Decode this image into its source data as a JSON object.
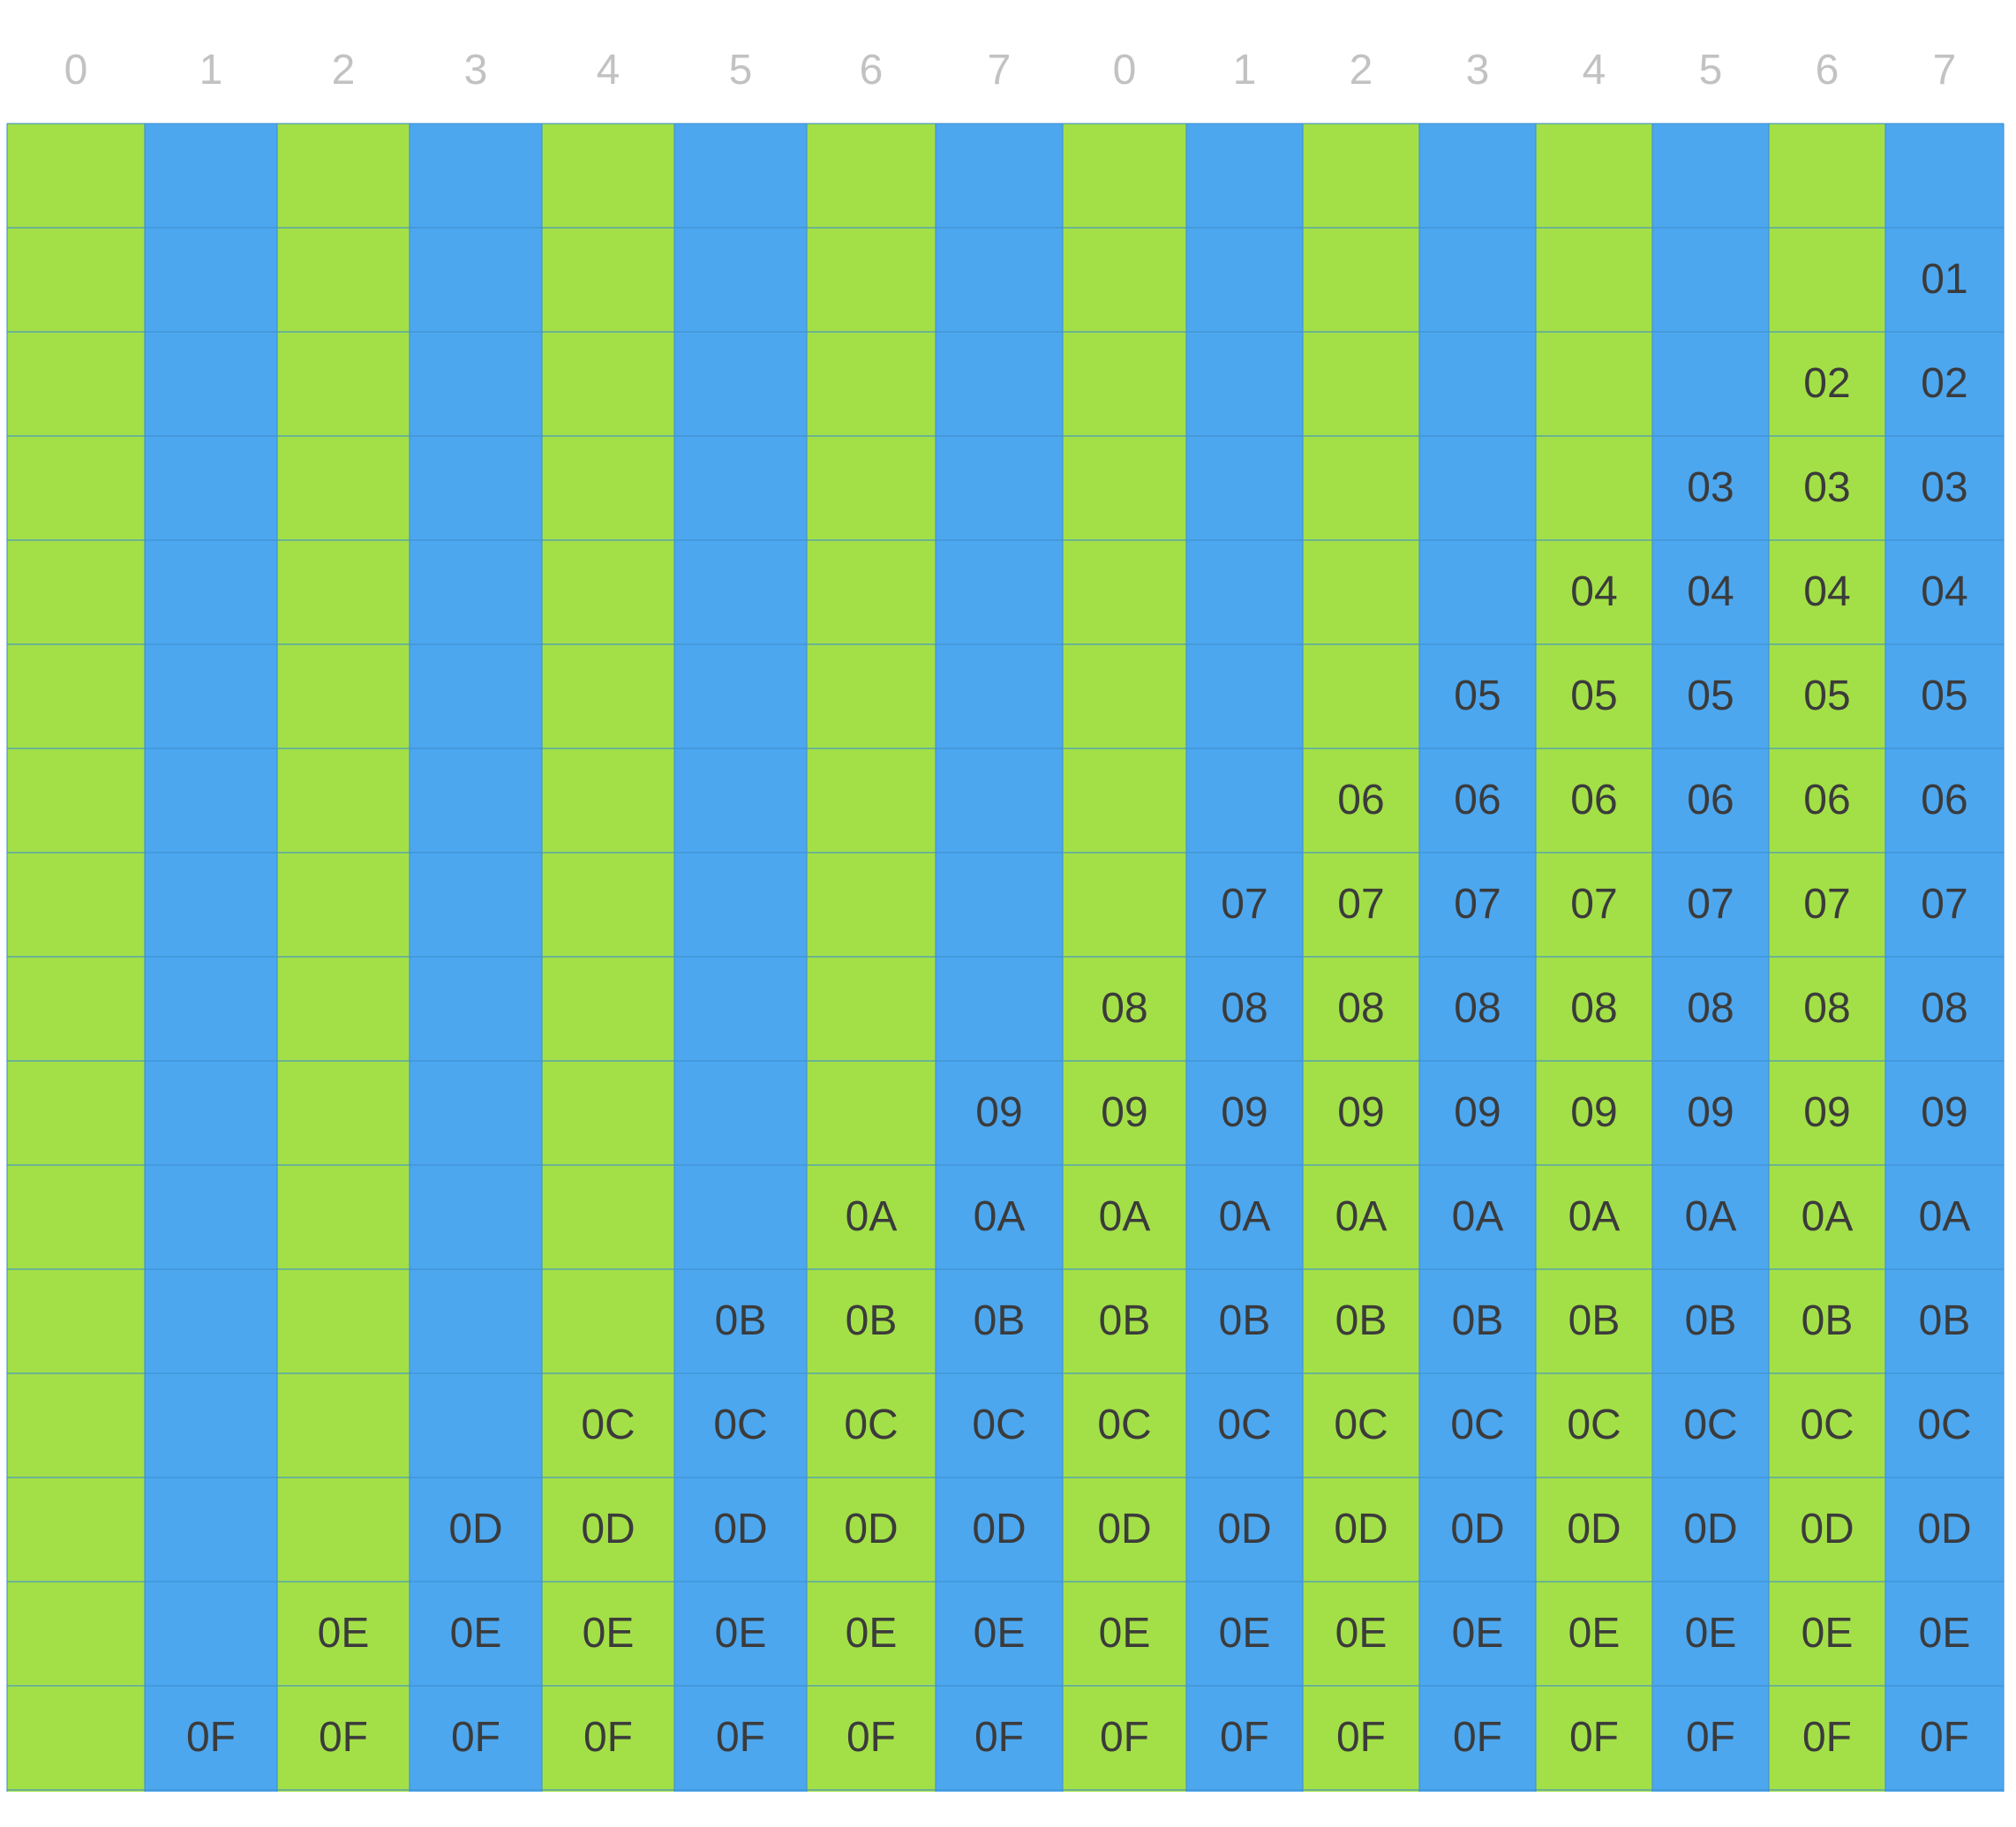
{
  "header": {
    "labels": [
      "0",
      "1",
      "2",
      "3",
      "4",
      "5",
      "6",
      "7",
      "0",
      "1",
      "2",
      "3",
      "4",
      "5",
      "6",
      "7"
    ]
  },
  "grid": {
    "columns": 16,
    "rows": 16,
    "column_colors": [
      "green",
      "blue",
      "green",
      "blue",
      "green",
      "blue",
      "green",
      "blue",
      "green",
      "blue",
      "green",
      "blue",
      "green",
      "blue",
      "green",
      "blue"
    ],
    "colors": {
      "green": "#a3e047",
      "blue": "#4ca7ef",
      "text": "#3b3b3b",
      "header_text": "#c2c2c2"
    },
    "cells": [
      [
        "",
        "",
        "",
        "",
        "",
        "",
        "",
        "",
        "",
        "",
        "",
        "",
        "",
        "",
        "",
        ""
      ],
      [
        "",
        "",
        "",
        "",
        "",
        "",
        "",
        "",
        "",
        "",
        "",
        "",
        "",
        "",
        "",
        "01"
      ],
      [
        "",
        "",
        "",
        "",
        "",
        "",
        "",
        "",
        "",
        "",
        "",
        "",
        "",
        "",
        "02",
        "02"
      ],
      [
        "",
        "",
        "",
        "",
        "",
        "",
        "",
        "",
        "",
        "",
        "",
        "",
        "",
        "03",
        "03",
        "03"
      ],
      [
        "",
        "",
        "",
        "",
        "",
        "",
        "",
        "",
        "",
        "",
        "",
        "",
        "04",
        "04",
        "04",
        "04"
      ],
      [
        "",
        "",
        "",
        "",
        "",
        "",
        "",
        "",
        "",
        "",
        "",
        "05",
        "05",
        "05",
        "05",
        "05"
      ],
      [
        "",
        "",
        "",
        "",
        "",
        "",
        "",
        "",
        "",
        "",
        "06",
        "06",
        "06",
        "06",
        "06",
        "06"
      ],
      [
        "",
        "",
        "",
        "",
        "",
        "",
        "",
        "",
        "",
        "07",
        "07",
        "07",
        "07",
        "07",
        "07",
        "07"
      ],
      [
        "",
        "",
        "",
        "",
        "",
        "",
        "",
        "",
        "08",
        "08",
        "08",
        "08",
        "08",
        "08",
        "08",
        "08"
      ],
      [
        "",
        "",
        "",
        "",
        "",
        "",
        "",
        "09",
        "09",
        "09",
        "09",
        "09",
        "09",
        "09",
        "09",
        "09"
      ],
      [
        "",
        "",
        "",
        "",
        "",
        "",
        "0A",
        "0A",
        "0A",
        "0A",
        "0A",
        "0A",
        "0A",
        "0A",
        "0A",
        "0A"
      ],
      [
        "",
        "",
        "",
        "",
        "",
        "0B",
        "0B",
        "0B",
        "0B",
        "0B",
        "0B",
        "0B",
        "0B",
        "0B",
        "0B",
        "0B"
      ],
      [
        "",
        "",
        "",
        "",
        "0C",
        "0C",
        "0C",
        "0C",
        "0C",
        "0C",
        "0C",
        "0C",
        "0C",
        "0C",
        "0C",
        "0C"
      ],
      [
        "",
        "",
        "",
        "0D",
        "0D",
        "0D",
        "0D",
        "0D",
        "0D",
        "0D",
        "0D",
        "0D",
        "0D",
        "0D",
        "0D",
        "0D"
      ],
      [
        "",
        "",
        "0E",
        "0E",
        "0E",
        "0E",
        "0E",
        "0E",
        "0E",
        "0E",
        "0E",
        "0E",
        "0E",
        "0E",
        "0E",
        "0E"
      ],
      [
        "",
        "0F",
        "0F",
        "0F",
        "0F",
        "0F",
        "0F",
        "0F",
        "0F",
        "0F",
        "0F",
        "0F",
        "0F",
        "0F",
        "0F",
        "0F"
      ]
    ]
  }
}
